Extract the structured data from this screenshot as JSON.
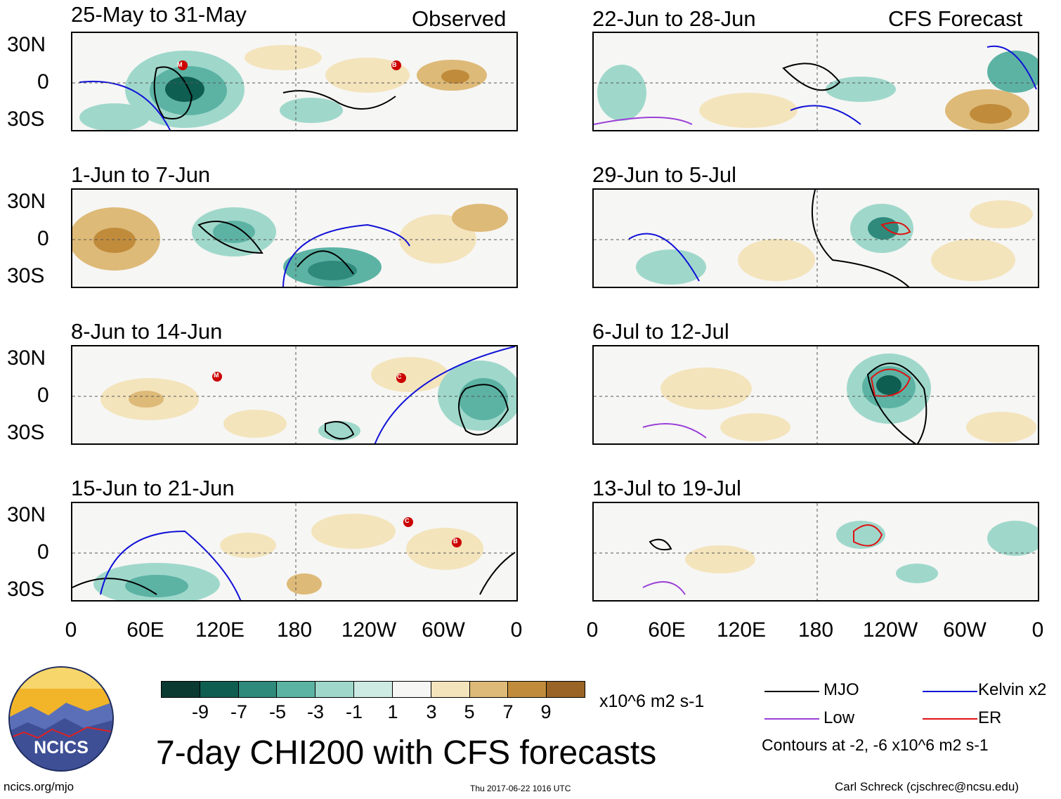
{
  "header": {
    "observed_label": "Observed",
    "forecast_label": "CFS Forecast"
  },
  "panels": [
    {
      "title": "25-May to 31-May",
      "column": "observed"
    },
    {
      "title": "1-Jun to 7-Jun",
      "column": "observed"
    },
    {
      "title": "8-Jun to 14-Jun",
      "column": "observed"
    },
    {
      "title": "15-Jun to 21-Jun",
      "column": "observed"
    },
    {
      "title": "22-Jun to 28-Jun",
      "column": "forecast"
    },
    {
      "title": "29-Jun to 5-Jul",
      "column": "forecast"
    },
    {
      "title": "6-Jul to 12-Jul",
      "column": "forecast"
    },
    {
      "title": "13-Jul to 19-Jul",
      "column": "forecast"
    }
  ],
  "axes": {
    "y_ticks": [
      "30N",
      "0",
      "30S"
    ],
    "x_ticks": [
      "0",
      "60E",
      "120E",
      "180",
      "120W",
      "60W",
      "0"
    ]
  },
  "storm_markers": {
    "panel_1": [
      "M",
      "B"
    ],
    "panel_3": [
      "M",
      "C"
    ],
    "panel_4": [
      "C",
      "B"
    ]
  },
  "colorbar": {
    "labels": [
      "-9",
      "-7",
      "-5",
      "-3",
      "-1",
      "1",
      "3",
      "5",
      "7",
      "9"
    ],
    "units": "x10^6 m2 s-1",
    "colors": [
      "#0b3a32",
      "#0f5e52",
      "#2f8a7c",
      "#5cb3a4",
      "#9fd8cb",
      "#cdebe3",
      "#f6f6f4",
      "#f4e4bc",
      "#deba78",
      "#c08c3c",
      "#9a6426",
      "#6e4213"
    ]
  },
  "legend": {
    "mjo": "MJO",
    "kelvin": "Kelvin x2",
    "low": "Low",
    "er": "ER",
    "contours_note": "Contours at -2, -6 x10^6 m2 s-1",
    "colors": {
      "mjo": "#000000",
      "kelvin": "#1010d8",
      "low": "#9a3fd8",
      "er": "#e01010"
    }
  },
  "logo": {
    "text": "NCICS"
  },
  "main_title": "7-day CHI200 with CFS forecasts",
  "footer": {
    "url": "ncics.org/mjo",
    "timestamp": "Thu 2017-06-22 1016 UTC",
    "author": "Carl Schreck (cjschrec@ncsu.edu)"
  }
}
